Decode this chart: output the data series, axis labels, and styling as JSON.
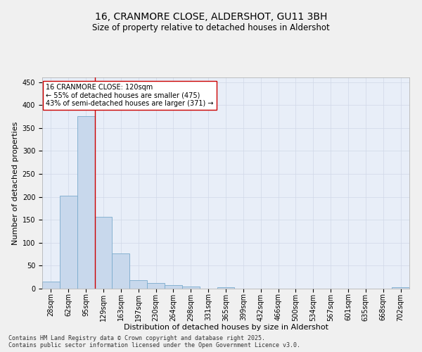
{
  "title": "16, CRANMORE CLOSE, ALDERSHOT, GU11 3BH",
  "subtitle": "Size of property relative to detached houses in Aldershot",
  "xlabel": "Distribution of detached houses by size in Aldershot",
  "ylabel": "Number of detached properties",
  "categories": [
    "28sqm",
    "62sqm",
    "95sqm",
    "129sqm",
    "163sqm",
    "197sqm",
    "230sqm",
    "264sqm",
    "298sqm",
    "331sqm",
    "365sqm",
    "399sqm",
    "432sqm",
    "466sqm",
    "500sqm",
    "534sqm",
    "567sqm",
    "601sqm",
    "635sqm",
    "668sqm",
    "702sqm"
  ],
  "values": [
    15,
    202,
    375,
    157,
    77,
    19,
    13,
    7,
    5,
    0,
    3,
    0,
    0,
    0,
    0,
    0,
    0,
    0,
    0,
    0,
    3
  ],
  "bar_color": "#c8d8ec",
  "bar_edge_color": "#7aabcc",
  "vline_x": 2.5,
  "vline_color": "#cc0000",
  "annotation_text": "16 CRANMORE CLOSE: 120sqm\n← 55% of detached houses are smaller (475)\n43% of semi-detached houses are larger (371) →",
  "annotation_box_color": "#ffffff",
  "annotation_box_edge": "#cc0000",
  "ylim": [
    0,
    460
  ],
  "yticks": [
    0,
    50,
    100,
    150,
    200,
    250,
    300,
    350,
    400,
    450
  ],
  "grid_color": "#d0d8e8",
  "bg_color": "#e8eef8",
  "fig_bg_color": "#f0f0f0",
  "footer": "Contains HM Land Registry data © Crown copyright and database right 2025.\nContains public sector information licensed under the Open Government Licence v3.0.",
  "title_fontsize": 10,
  "subtitle_fontsize": 8.5,
  "xlabel_fontsize": 8,
  "ylabel_fontsize": 8,
  "tick_fontsize": 7,
  "annotation_fontsize": 7,
  "footer_fontsize": 6
}
